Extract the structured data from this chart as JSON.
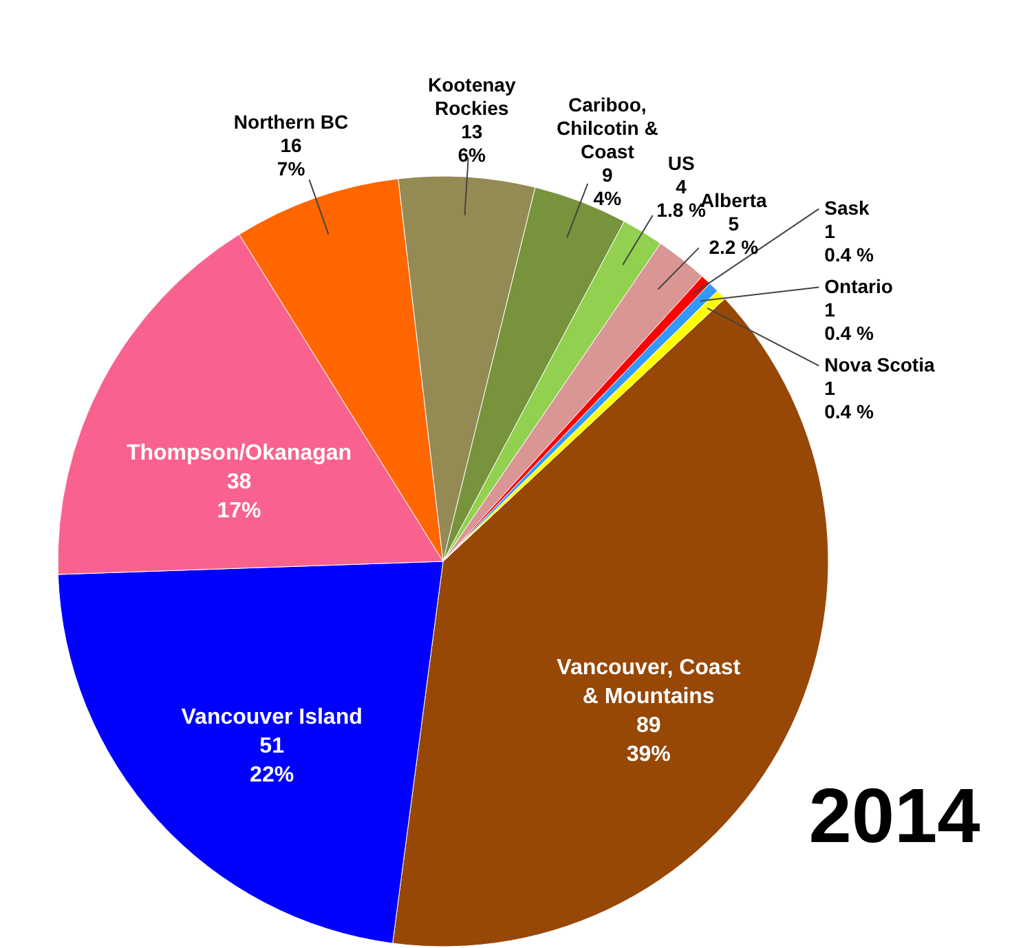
{
  "chart_data": {
    "type": "pie",
    "title": "2014",
    "categories": [
      "Vancouver, Coast & Mountains",
      "Vancouver Island",
      "Thompson/Okanagan",
      "Northern BC",
      "Kootenay Rockies",
      "Cariboo, Chilcotin & Coast",
      "US",
      "Alberta",
      "Sask",
      "Ontario",
      "Nova Scotia"
    ],
    "values": [
      89,
      51,
      38,
      16,
      13,
      9,
      4,
      5,
      1,
      1,
      1
    ],
    "value_labels": [
      "89\n39%",
      "51\n22%",
      "38\n17%",
      "16\n7%",
      "13\n6%",
      "9\n4%",
      "4\n1.8 %",
      "5\n2.2 %",
      "1\n0.4 %",
      "1\n0.4 %",
      "1\n0.4 %"
    ],
    "colors": [
      "#974706",
      "#0000ff",
      "#f9628e",
      "#ff6600",
      "#948a54",
      "#77933c",
      "#92d050",
      "#d99694",
      "#ff0000",
      "#3399ff",
      "#ffff00"
    ],
    "data_labels": false
  }
}
